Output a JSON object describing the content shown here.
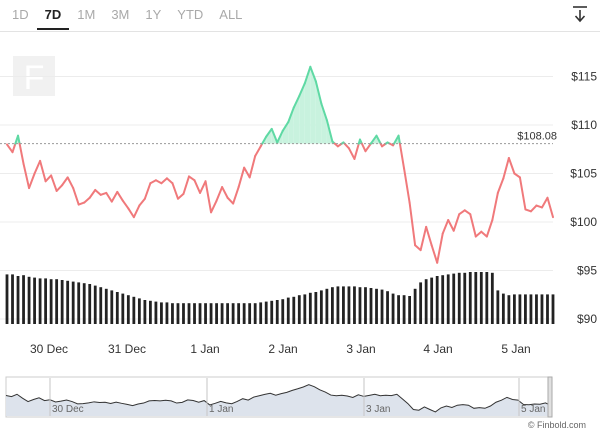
{
  "toolbar": {
    "tabs": [
      "1D",
      "7D",
      "1M",
      "3M",
      "1Y",
      "YTD",
      "ALL"
    ],
    "active_tab": "7D",
    "download_icon": "download-arrow-icon"
  },
  "watermark": {
    "logo_letter": "F"
  },
  "credit": "© Finbold.com",
  "colors": {
    "above": "#5fd9a4",
    "below": "#f0797b",
    "area_fill": "#c8f2de",
    "volume": "#222222",
    "navigator_fill": "#dde3ec"
  },
  "chart_data": {
    "type": "line",
    "x_labels": [
      "30 Dec",
      "31 Dec",
      "1 Jan",
      "2 Jan",
      "3 Jan",
      "4 Jan",
      "5 Jan"
    ],
    "y_ticks": [
      "$90",
      "$95",
      "$100",
      "$105",
      "$110",
      "$115"
    ],
    "ylim": [
      90,
      119
    ],
    "reference_price": 108.08,
    "reference_label": "$108.08",
    "price": [
      108.0,
      107.2,
      108.9,
      106.0,
      103.5,
      105.0,
      106.3,
      104.2,
      104.8,
      103.2,
      103.8,
      104.6,
      103.5,
      101.8,
      102.0,
      102.5,
      103.3,
      102.8,
      103.0,
      102.1,
      103.1,
      102.2,
      101.4,
      100.5,
      101.7,
      102.4,
      104.0,
      104.3,
      104.0,
      104.5,
      104.0,
      102.4,
      102.9,
      104.7,
      104.3,
      103.0,
      104.2,
      101.0,
      102.2,
      103.6,
      102.5,
      101.9,
      103.6,
      105.6,
      104.6,
      106.8,
      107.8,
      108.8,
      109.6,
      108.2,
      109.4,
      110.3,
      111.8,
      113.0,
      114.3,
      116.0,
      114.5,
      112.2,
      110.5,
      108.3,
      107.8,
      108.2,
      107.6,
      106.5,
      108.5,
      107.3,
      108.1,
      108.9,
      107.8,
      108.2,
      107.9,
      108.9,
      105.5,
      102.0,
      97.6,
      97.1,
      99.5,
      97.6,
      95.8,
      98.8,
      100.2,
      99.1,
      100.8,
      101.2,
      100.8,
      98.5,
      99.0,
      98.5,
      100.2,
      103.0,
      104.5,
      106.6,
      105.0,
      104.6,
      101.3,
      101.1,
      101.7,
      101.5,
      102.5,
      100.5
    ],
    "volume_relative": [
      0.62,
      0.62,
      0.6,
      0.61,
      0.59,
      0.58,
      0.57,
      0.57,
      0.56,
      0.56,
      0.55,
      0.54,
      0.53,
      0.52,
      0.51,
      0.5,
      0.48,
      0.46,
      0.44,
      0.42,
      0.4,
      0.38,
      0.36,
      0.34,
      0.32,
      0.3,
      0.29,
      0.28,
      0.27,
      0.27,
      0.26,
      0.26,
      0.26,
      0.26,
      0.26,
      0.26,
      0.26,
      0.26,
      0.26,
      0.26,
      0.26,
      0.26,
      0.26,
      0.26,
      0.26,
      0.26,
      0.27,
      0.28,
      0.29,
      0.3,
      0.31,
      0.33,
      0.34,
      0.36,
      0.37,
      0.39,
      0.4,
      0.42,
      0.44,
      0.46,
      0.47,
      0.47,
      0.47,
      0.47,
      0.46,
      0.46,
      0.45,
      0.44,
      0.43,
      0.41,
      0.38,
      0.36,
      0.36,
      0.35,
      0.44,
      0.52,
      0.56,
      0.58,
      0.6,
      0.61,
      0.62,
      0.63,
      0.64,
      0.64,
      0.65,
      0.65,
      0.65,
      0.65,
      0.64,
      0.42,
      0.38,
      0.36,
      0.37,
      0.37,
      0.37,
      0.37,
      0.37,
      0.37,
      0.37,
      0.37
    ]
  }
}
